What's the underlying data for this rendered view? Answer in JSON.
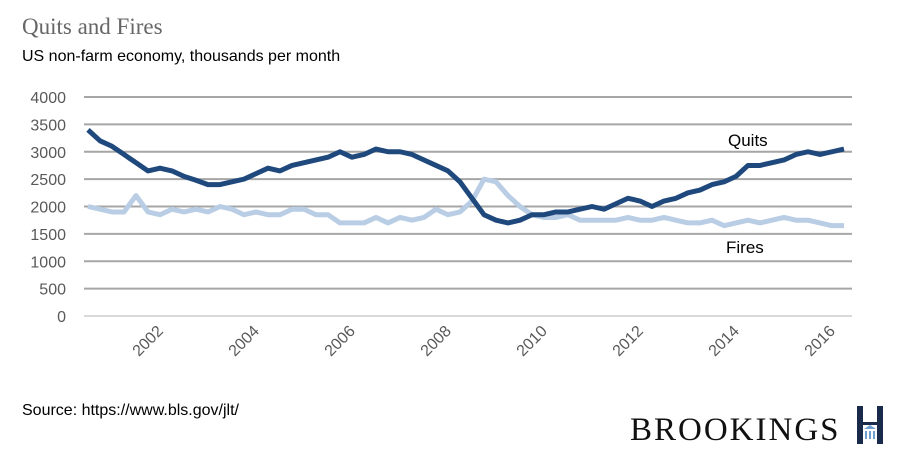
{
  "title": "Quits and Fires",
  "subtitle": "US non-farm economy, thousands per month",
  "source": "Source: https://www.bls.gov/jlt/",
  "logo": "BROOKINGS",
  "chart_data": {
    "type": "line",
    "title": "Quits and Fires",
    "xlabel": "",
    "ylabel": "",
    "ylim": [
      0,
      4000
    ],
    "yticks": [
      "0",
      "500",
      "1000",
      "1500",
      "2000",
      "2500",
      "3000",
      "3500",
      "4000"
    ],
    "xticks": [
      "2002",
      "2004",
      "2006",
      "2008",
      "2010",
      "2012",
      "2014",
      "2016"
    ],
    "xlim": [
      "2000-12",
      "2016-12"
    ],
    "grid": true,
    "legend": "inline labels",
    "x": [
      "2001-01",
      "2001-04",
      "2001-07",
      "2001-10",
      "2002-01",
      "2002-04",
      "2002-07",
      "2002-10",
      "2003-01",
      "2003-04",
      "2003-07",
      "2003-10",
      "2004-01",
      "2004-04",
      "2004-07",
      "2004-10",
      "2005-01",
      "2005-04",
      "2005-07",
      "2005-10",
      "2006-01",
      "2006-04",
      "2006-07",
      "2006-10",
      "2007-01",
      "2007-04",
      "2007-07",
      "2007-10",
      "2008-01",
      "2008-04",
      "2008-07",
      "2008-10",
      "2009-01",
      "2009-04",
      "2009-07",
      "2009-10",
      "2010-01",
      "2010-04",
      "2010-07",
      "2010-10",
      "2011-01",
      "2011-04",
      "2011-07",
      "2011-10",
      "2012-01",
      "2012-04",
      "2012-07",
      "2012-10",
      "2013-01",
      "2013-04",
      "2013-07",
      "2013-10",
      "2014-01",
      "2014-04",
      "2014-07",
      "2014-10",
      "2015-01",
      "2015-04",
      "2015-07",
      "2015-10",
      "2016-01",
      "2016-04",
      "2016-07",
      "2016-10"
    ],
    "series": [
      {
        "name": "Quits",
        "color": "#1f497d",
        "values": [
          3400,
          3200,
          3100,
          2950,
          2800,
          2650,
          2700,
          2650,
          2550,
          2480,
          2400,
          2400,
          2450,
          2500,
          2600,
          2700,
          2650,
          2750,
          2800,
          2850,
          2900,
          3000,
          2900,
          2950,
          3050,
          3000,
          3000,
          2950,
          2850,
          2750,
          2650,
          2450,
          2150,
          1850,
          1750,
          1700,
          1750,
          1850,
          1850,
          1900,
          1900,
          1950,
          2000,
          1950,
          2050,
          2150,
          2100,
          2000,
          2100,
          2150,
          2250,
          2300,
          2400,
          2450,
          2550,
          2750,
          2750,
          2800,
          2850,
          2950,
          3000,
          2950,
          3000,
          3050
        ]
      },
      {
        "name": "Fires",
        "color": "#b9cde5",
        "values": [
          2000,
          1950,
          1900,
          1900,
          2200,
          1900,
          1850,
          1950,
          1900,
          1950,
          1900,
          2000,
          1950,
          1850,
          1900,
          1850,
          1850,
          1950,
          1950,
          1850,
          1850,
          1700,
          1700,
          1700,
          1800,
          1700,
          1800,
          1750,
          1800,
          1950,
          1850,
          1900,
          2100,
          2500,
          2450,
          2200,
          2000,
          1850,
          1800,
          1800,
          1850,
          1750,
          1750,
          1750,
          1750,
          1800,
          1750,
          1750,
          1800,
          1750,
          1700,
          1700,
          1750,
          1650,
          1700,
          1750,
          1700,
          1750,
          1800,
          1750,
          1750,
          1700,
          1650,
          1650
        ]
      }
    ]
  }
}
